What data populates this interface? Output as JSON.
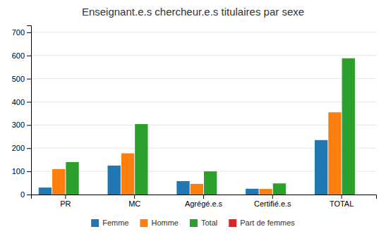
{
  "chart_data": {
    "type": "bar",
    "title": "Enseignant.e.s chercheur.e.s titulaires par sexe",
    "categories": [
      "PR",
      "MC",
      "Agrégé.e.s",
      "Certifié.e.s",
      "TOTAL"
    ],
    "series": [
      {
        "name": "Femme",
        "values": [
          30,
          125,
          58,
          25,
          235
        ]
      },
      {
        "name": "Homme",
        "values": [
          110,
          178,
          46,
          24,
          355
        ]
      },
      {
        "name": "Total",
        "values": [
          140,
          304,
          100,
          48,
          588
        ]
      },
      {
        "name": "Part de femmes",
        "values": [
          0,
          0,
          0,
          0,
          0
        ]
      }
    ],
    "ylim": [
      0,
      730
    ],
    "yticks": [
      0,
      100,
      200,
      300,
      400,
      500,
      600,
      700
    ],
    "grid": true,
    "legend": "bottom"
  }
}
